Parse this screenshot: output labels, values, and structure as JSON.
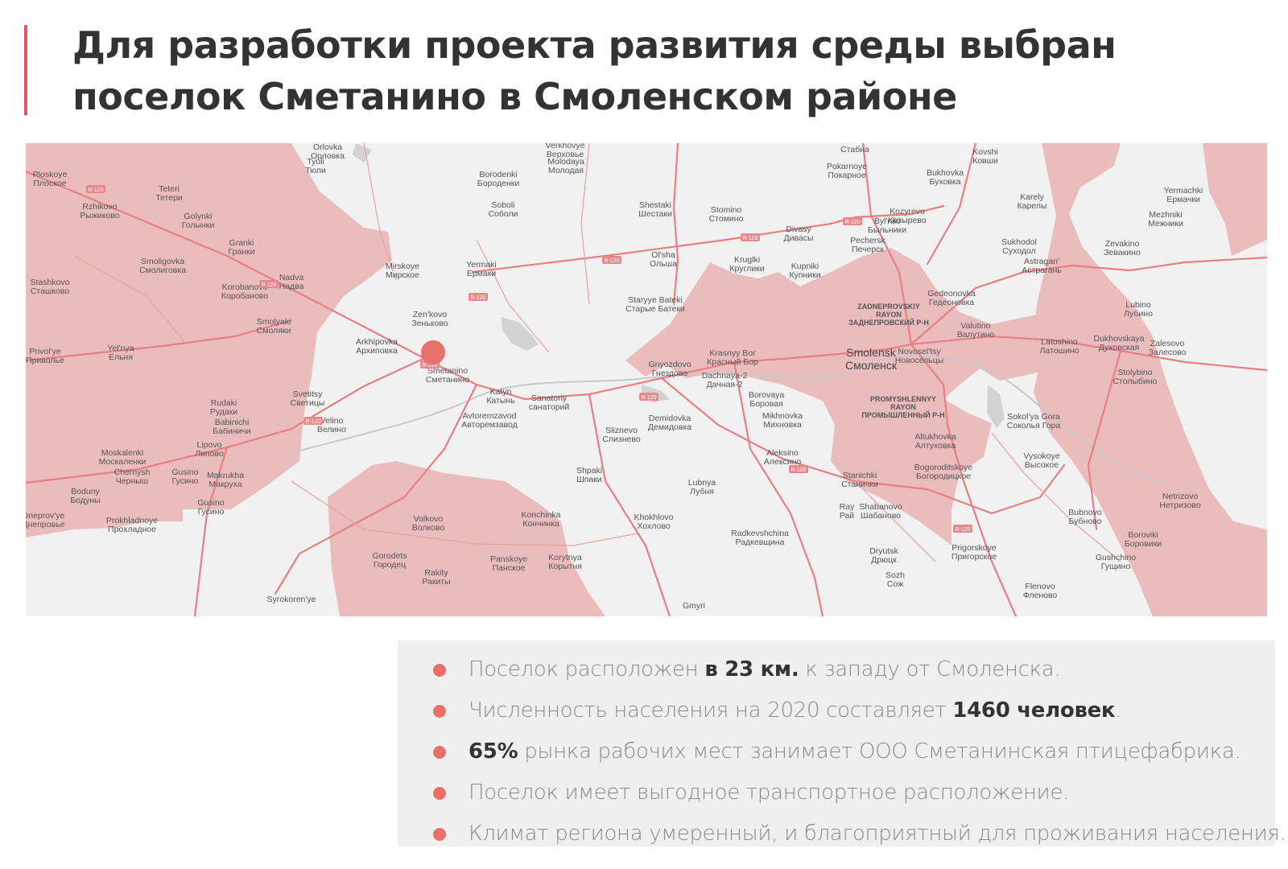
{
  "header": {
    "title_line1": "Для разработки проекта развития среды выбран",
    "title_line2": "поселок Сметанино в Смоленском районе"
  },
  "colors": {
    "accent": "#e2575a",
    "marker": "#e96f6b",
    "district_fill": "#e8b4b4",
    "road": "#e87f82",
    "map_bg": "#f1f1f1",
    "panel_bg": "#efefef"
  },
  "map": {
    "marker_label": "Smetanino",
    "places": [
      {
        "en": "Ploskoye",
        "ru": "Плоское"
      },
      {
        "en": "Teteri",
        "ru": "Тетери"
      },
      {
        "en": "Rzhikovo",
        "ru": "Рыжиково"
      },
      {
        "en": "Golynki",
        "ru": "Голынки"
      },
      {
        "en": "Granki",
        "ru": "Гранки"
      },
      {
        "en": "Smoligovka",
        "ru": "Смолиговка"
      },
      {
        "en": "Nadva",
        "ru": "Надва"
      },
      {
        "en": "Korobanovo",
        "ru": "Коробаново"
      },
      {
        "en": "Stashkovo",
        "ru": "Сташково"
      },
      {
        "en": "Smolyaki",
        "ru": "Смоляки"
      },
      {
        "en": "Privol'ye",
        "ru": "Приволье"
      },
      {
        "en": "Yel'nya",
        "ru": "Ельня"
      },
      {
        "en": "Rudaki",
        "ru": "Рудаки"
      },
      {
        "en": "Babinichi",
        "ru": "Бабиничи"
      },
      {
        "en": "Svetitsy",
        "ru": "Светицы"
      },
      {
        "en": "Velino",
        "ru": "Велино"
      },
      {
        "en": "Moskalenki",
        "ru": "Москаленки"
      },
      {
        "en": "Lipovo",
        "ru": "Липово"
      },
      {
        "en": "Chernysh",
        "ru": "Черныш"
      },
      {
        "en": "Gusino",
        "ru": "Гусино"
      },
      {
        "en": "Makrukha",
        "ru": "Макруха"
      },
      {
        "en": "Boduny",
        "ru": "Бодуны"
      },
      {
        "en": "Gusino",
        "ru": "Гусино"
      },
      {
        "en": "Dneprov'ye",
        "ru": "Днепровье"
      },
      {
        "en": "Prokhladnoye",
        "ru": "Прохладное"
      },
      {
        "en": "Tyuli",
        "ru": "Тюли"
      },
      {
        "en": "Orlovka",
        "ru": "Орловка"
      },
      {
        "en": "Borodenki",
        "ru": "Бороденки"
      },
      {
        "en": "Soboli",
        "ru": "Соболи"
      },
      {
        "en": "Verkhovye",
        "ru": "Верховье"
      },
      {
        "en": "Molodaya",
        "ru": "Молодая"
      },
      {
        "en": "Mirskoye",
        "ru": "Мирское"
      },
      {
        "en": "Yermaki",
        "ru": "Ермаки"
      },
      {
        "en": "Zen'kovo",
        "ru": "Зеньково"
      },
      {
        "en": "Arkhipovka",
        "ru": "Архиповка"
      },
      {
        "en": "Smetanino",
        "ru": "Сметанино"
      },
      {
        "en": "Katyn",
        "ru": "Катынь"
      },
      {
        "en": "Avtoremzavod",
        "ru": "Авторемзавод"
      },
      {
        "en": "Sanatoriy",
        "ru": "санаторий"
      },
      {
        "en": "Shestaki",
        "ru": "Шестаки"
      },
      {
        "en": "Stomino",
        "ru": "Стомино"
      },
      {
        "en": "Ol'sha",
        "ru": "Ольша"
      },
      {
        "en": "Kruglki",
        "ru": "Круглики"
      },
      {
        "en": "Staryye Bateki",
        "ru": "Старые Батеки"
      },
      {
        "en": "Gnyozdovo",
        "ru": "Гнездово"
      },
      {
        "en": "Krasnyy Bor",
        "ru": "Красный Бор"
      },
      {
        "en": "Dachnaya-2",
        "ru": "Дачная-2"
      },
      {
        "en": "Borovaya",
        "ru": "Боровая"
      },
      {
        "en": "Demidovka",
        "ru": "Демидовка"
      },
      {
        "en": "Sliznevo",
        "ru": "Слизнево"
      },
      {
        "en": "Mikhnovka",
        "ru": "Михновка"
      },
      {
        "en": "Shpaki",
        "ru": "Шпаки"
      },
      {
        "en": "Aleksino",
        "ru": "Алексино"
      },
      {
        "en": "Lubnya",
        "ru": "Лубня"
      },
      {
        "en": "Konchinka",
        "ru": "Кончинка"
      },
      {
        "en": "Volkovo",
        "ru": "Волково"
      },
      {
        "en": "Khokhlovo",
        "ru": "Хохлово"
      },
      {
        "en": "Gorodets",
        "ru": "Городец"
      },
      {
        "en": "Panskoye",
        "ru": "Панское"
      },
      {
        "en": "Rakity",
        "ru": "Ракиты"
      },
      {
        "en": "Korytnya",
        "ru": "Корытня"
      },
      {
        "en": "Radkevshchina",
        "ru": "Радкевщина"
      },
      {
        "en": "Divasy",
        "ru": "Дивасы"
      },
      {
        "en": "Pokarnoye",
        "ru": "Покарное"
      },
      {
        "en": "Byl'niki",
        "ru": "Быльники"
      },
      {
        "en": "Pechersk",
        "ru": "Печерск"
      },
      {
        "en": "Kupniki",
        "ru": "Купники"
      },
      {
        "en": "Bukhovka",
        "ru": "Буховка"
      },
      {
        "en": "Kozyrevo",
        "ru": "Козырево"
      },
      {
        "en": "Kovshi",
        "ru": "Ковши"
      },
      {
        "en": "Stabna",
        "ru": "Стабна"
      },
      {
        "en": "Gedeonovka",
        "ru": "Гедеоновка"
      },
      {
        "en": "Valutino",
        "ru": "Валутино"
      },
      {
        "en": "Novosel'tsy",
        "ru": "Новосельцы"
      },
      {
        "en": "Altukhovka",
        "ru": "Алтуховка"
      },
      {
        "en": "Bogoroditskoye",
        "ru": "Богородицкое"
      },
      {
        "en": "Stanichki",
        "ru": "Станички"
      },
      {
        "en": "Ray",
        "ru": "Рай"
      },
      {
        "en": "Shabanovo",
        "ru": "Шабаново"
      },
      {
        "en": "Dryutsk",
        "ru": "Дрюцк"
      },
      {
        "en": "Sozh",
        "ru": "Сож"
      },
      {
        "en": "Prigorskoye",
        "ru": "Пригорское"
      },
      {
        "en": "Karely",
        "ru": "Карелы"
      },
      {
        "en": "Sukhodol",
        "ru": "Суходол"
      },
      {
        "en": "Astragan'",
        "ru": "Астрагань"
      },
      {
        "en": "Latoshino",
        "ru": "Латошино"
      },
      {
        "en": "Sokol'ya Gora",
        "ru": "Соколья Гора"
      },
      {
        "en": "Vysokoye",
        "ru": "Высокое"
      },
      {
        "en": "Bubnovo",
        "ru": "Бубново"
      },
      {
        "en": "Flenovo",
        "ru": "Фленово"
      },
      {
        "en": "Yermachki",
        "ru": "Ермачки"
      },
      {
        "en": "Mezhniki",
        "ru": "Межники"
      },
      {
        "en": "Zevakino",
        "ru": "Зевакино"
      },
      {
        "en": "Lubino",
        "ru": "Лубино"
      },
      {
        "en": "Dukhovskaya",
        "ru": "Духовская"
      },
      {
        "en": "Zalesovo",
        "ru": "Залесово"
      },
      {
        "en": "Stolybino",
        "ru": "Столыбино"
      },
      {
        "en": "Netrizovo",
        "ru": "Нетризово"
      },
      {
        "en": "Boroviki",
        "ru": "Боровики"
      },
      {
        "en": "Gushchino",
        "ru": "Гущино"
      },
      {
        "en": "Syrokoren'ye",
        "ru": ""
      },
      {
        "en": "Gmyri",
        "ru": ""
      }
    ],
    "city": {
      "en": "Smolensk",
      "ru": "Смоленск"
    },
    "districts": [
      {
        "en1": "ZADNEPROVSKIY",
        "en2": "RAYON",
        "ru": "ЗАДНЕПРОВСКИЙ Р-Н"
      },
      {
        "en1": "PROMYSHLENNYY",
        "en2": "RAYON",
        "ru": "ПРОМЫШЛЕННЫЙ Р-Н"
      }
    ],
    "road_shields": [
      "R-120",
      "R-120",
      "R-120",
      "R-120",
      "R-120",
      "R-120",
      "R-120",
      "R-120",
      "R-120",
      "R-120",
      "R-120"
    ]
  },
  "facts": [
    {
      "pre": "Поселок расположен ",
      "bold": "в 23 км.",
      "post": " к западу от Смоленска."
    },
    {
      "pre": "Численность населения на 2020 составляет ",
      "bold": "1460 человек",
      "post": "."
    },
    {
      "pre": "",
      "bold": "65%",
      "post": " рынка рабочих мест занимает ООО Сметанинская птицефабрика."
    },
    {
      "pre": "Поселок имеет выгодное транспортное расположение.",
      "bold": "",
      "post": ""
    },
    {
      "pre": "Климат региона умеренный, и благоприятный для проживания населения.",
      "bold": "",
      "post": ""
    }
  ]
}
